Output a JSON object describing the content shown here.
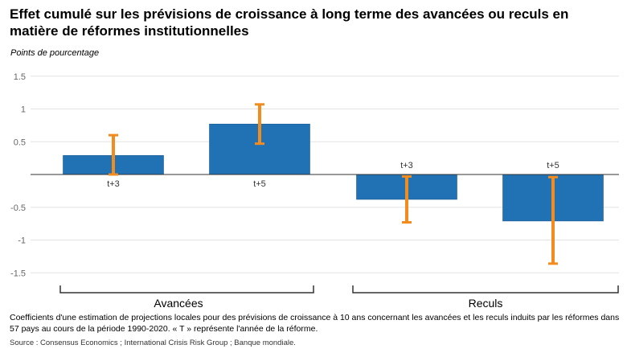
{
  "chart_data": {
    "type": "bar",
    "title": "Effet cumulé sur les prévisions de croissance à long terme des avancées ou reculs en matière de réformes institutionnelles",
    "ylabel": "Points de pourcentage",
    "ylim": [
      -1.5,
      1.5
    ],
    "yticks": [
      1.5,
      1,
      0.5,
      -0.5,
      -1,
      -1.5
    ],
    "ytick_labels": [
      "1.5",
      "1",
      "0.5",
      "-0.5",
      "-1",
      "-1.5"
    ],
    "bar_color": "#2171b5",
    "error_color": "#f28c1e",
    "groups": [
      {
        "name": "Avancées",
        "bars": [
          {
            "label": "t+3",
            "value": 0.29,
            "low": 0.0,
            "high": 0.6
          },
          {
            "label": "t+5",
            "value": 0.77,
            "low": 0.47,
            "high": 1.07
          }
        ]
      },
      {
        "name": "Reculs",
        "bars": [
          {
            "label": "t+3",
            "value": -0.38,
            "low": -0.73,
            "high": -0.03
          },
          {
            "label": "t+5",
            "value": -0.71,
            "low": -1.36,
            "high": -0.04
          }
        ]
      }
    ],
    "note": "Coefficients d'une estimation de projections locales pour des prévisions de croissance à 10 ans concernant les avancées et les reculs induits par les réformes dans 57 pays au cours de la période 1990-2020. « T » représente l'année de la réforme.",
    "source": "Source : Consensus Economics ; International Crisis Risk Group ; Banque mondiale."
  }
}
